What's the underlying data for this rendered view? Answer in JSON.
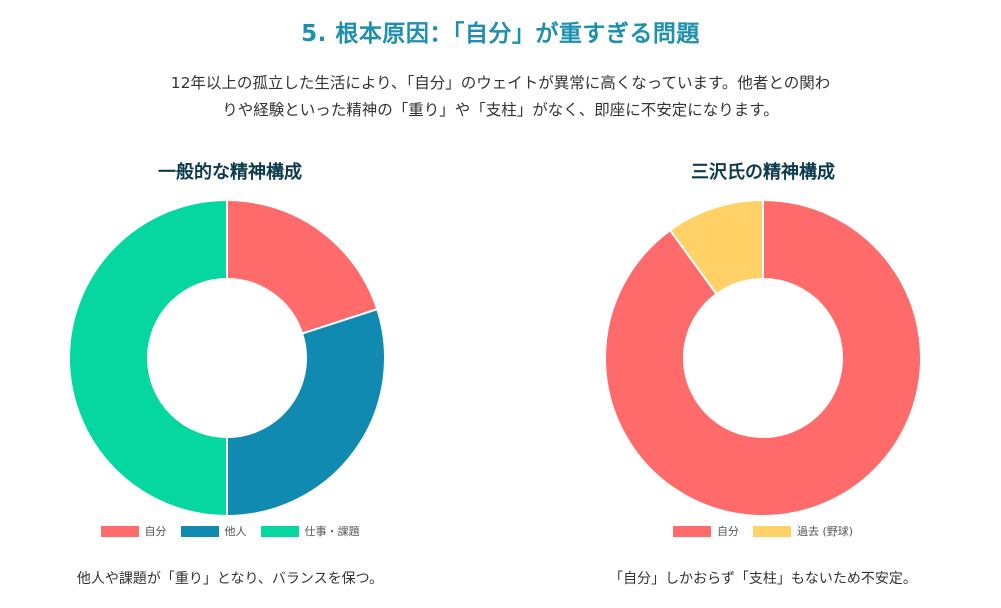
{
  "page": {
    "title": "5. 根本原因：「自分」が重すぎる問題",
    "intro_line1": "12年以上の孤立した生活により、「自分」のウェイトが異常に高くなっています。他者との関わ",
    "intro_line2": "りや経験といった精神の「重り」や「支柱」がなく、即座に不安定になります。"
  },
  "chart_data": [
    {
      "type": "pie",
      "donut": true,
      "title": "一般的な精神構成",
      "categories": [
        "自分",
        "他人",
        "仕事・課題"
      ],
      "values": [
        20,
        30,
        50
      ],
      "colors": [
        "#ff6b6b",
        "#118ab2",
        "#06d6a0"
      ],
      "legend": "bottom",
      "caption": "他人や課題が「重り」となり、バランスを保つ。"
    },
    {
      "type": "pie",
      "donut": true,
      "title": "三沢氏の精神構成",
      "categories": [
        "自分",
        "過去 (野球)"
      ],
      "values": [
        90,
        10
      ],
      "colors": [
        "#ff6b6b",
        "#ffd166"
      ],
      "legend": "bottom",
      "caption": "「自分」しかおらず「支柱」もないため不安定。"
    }
  ]
}
